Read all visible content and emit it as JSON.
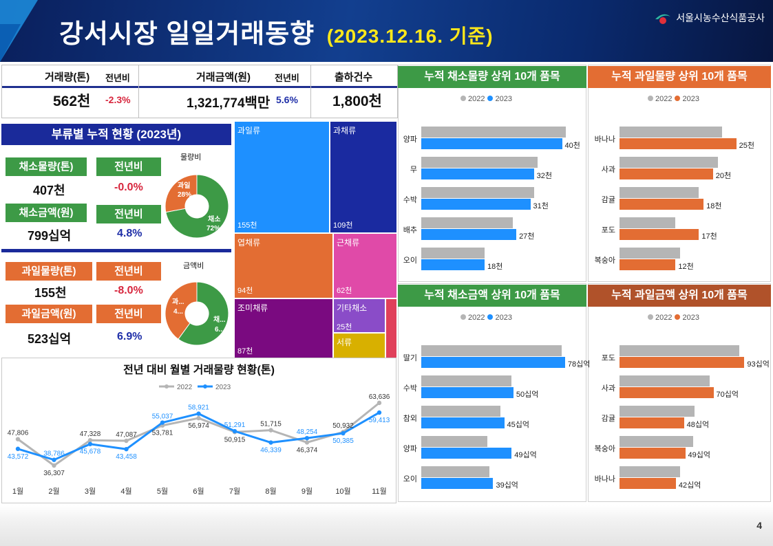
{
  "header": {
    "title": "강서시장 일일거래동향",
    "date": "(2023.12.16. 기준)",
    "org": "서울시농수산식품공사",
    "page": "4"
  },
  "kpi": {
    "volume_label": "거래량(톤)",
    "volume_value": "562천",
    "volume_yoy_label": "전년비",
    "volume_yoy": "-2.3%",
    "amount_label": "거래금액(원)",
    "amount_value": "1,321,774",
    "amount_unit": "백만",
    "amount_yoy_label": "전년비",
    "amount_yoy": "5.6%",
    "shipments_label": "출하건수",
    "shipments_value": "1,800천"
  },
  "category": {
    "title": "부류별 누적 현황 (2023년)",
    "veg_vol_label": "채소물량(톤)",
    "veg_vol": "407천",
    "veg_vol_yoy_label": "전년비",
    "veg_vol_yoy": "-0.0%",
    "veg_amt_label": "채소금액(원)",
    "veg_amt": "799십억",
    "veg_amt_yoy_label": "전년비",
    "veg_amt_yoy": "4.8%",
    "fruit_vol_label": "과일물량(톤)",
    "fruit_vol": "155천",
    "fruit_vol_yoy_label": "전년비",
    "fruit_vol_yoy": "-8.0%",
    "fruit_amt_label": "과일금액(원)",
    "fruit_amt": "523십억",
    "fruit_amt_yoy_label": "전년비",
    "fruit_amt_yoy": "6.9%",
    "donut1_title": "물량비",
    "donut1_fruit_label": "과일",
    "donut1_fruit_pct": "28%",
    "donut1_veg_label": "채소",
    "donut1_veg_pct": "72%",
    "donut2_title": "금액비",
    "donut2_fruit_label": "과...",
    "donut2_fruit_pct": "4...",
    "donut2_veg_label": "채...",
    "donut2_veg_pct": "6..."
  },
  "colors": {
    "navy": "#1a2a9a",
    "green": "#3d9a46",
    "orange": "#e36d33",
    "blue": "#1e90ff",
    "gray": "#b5b5b5"
  },
  "chart_data": [
    {
      "type": "pie",
      "title": "물량비",
      "categories": [
        "채소",
        "과일"
      ],
      "values": [
        72,
        28
      ]
    },
    {
      "type": "pie",
      "title": "금액비",
      "categories": [
        "채소",
        "과일"
      ],
      "values": [
        60,
        40
      ]
    },
    {
      "type": "treemap",
      "title": "",
      "categories": [
        "과일류",
        "과채류",
        "엽채류",
        "근채류",
        "조미채류",
        "기타채소",
        "서류"
      ],
      "values": [
        155,
        109,
        94,
        62,
        87,
        25,
        16
      ],
      "value_labels": [
        "155천",
        "109천",
        "94천",
        "62천",
        "87천",
        "25천",
        ""
      ]
    },
    {
      "type": "bar",
      "title": "누적 채소물량 상위 10개 품목",
      "categories": [
        "양파",
        "무",
        "수박",
        "배추",
        "오이"
      ],
      "series": [
        {
          "name": "2022",
          "values": [
            41,
            33,
            32,
            26,
            18
          ]
        },
        {
          "name": "2023",
          "values": [
            40,
            32,
            31,
            27,
            18
          ]
        }
      ],
      "value_labels": [
        "40천",
        "32천",
        "31천",
        "27천",
        "18천"
      ]
    },
    {
      "type": "bar",
      "title": "누적 과일물량 상위 10개 품목",
      "categories": [
        "바나나",
        "사과",
        "감귤",
        "포도",
        "복숭아"
      ],
      "series": [
        {
          "name": "2022",
          "values": [
            22,
            21,
            17,
            12,
            13
          ]
        },
        {
          "name": "2023",
          "values": [
            25,
            20,
            18,
            17,
            12
          ]
        }
      ],
      "value_labels": [
        "25천",
        "20천",
        "18천",
        "17천",
        "12천"
      ]
    },
    {
      "type": "bar",
      "title": "누적 채소금액 상위 10개 품목",
      "categories": [
        "딸기",
        "수박",
        "참외",
        "양파",
        "오이"
      ],
      "series": [
        {
          "name": "2022",
          "values": [
            76,
            49,
            43,
            36,
            37
          ]
        },
        {
          "name": "2023",
          "values": [
            78,
            50,
            45,
            49,
            39
          ]
        }
      ],
      "value_labels": [
        "78십억",
        "50십억",
        "45십억",
        "49십억",
        "39십억"
      ]
    },
    {
      "type": "bar",
      "title": "누적 과일금액 상위 10개 품목",
      "categories": [
        "포도",
        "사과",
        "감귤",
        "복숭아",
        "바나나"
      ],
      "series": [
        {
          "name": "2022",
          "values": [
            89,
            67,
            56,
            55,
            45
          ]
        },
        {
          "name": "2023",
          "values": [
            93,
            70,
            48,
            49,
            42
          ]
        }
      ],
      "value_labels": [
        "93십억",
        "70십억",
        "48십억",
        "49십억",
        "42십억"
      ]
    },
    {
      "type": "line",
      "title": "전년 대비 월별 거래물량 현황(톤)",
      "categories": [
        "1월",
        "2월",
        "3월",
        "4월",
        "5월",
        "6월",
        "7월",
        "8월",
        "9월",
        "10월",
        "11월"
      ],
      "series": [
        {
          "name": "2022",
          "values": [
            47806,
            36307,
            47328,
            47087,
            53781,
            56974,
            50915,
            51715,
            46374,
            50932,
            63636
          ]
        },
        {
          "name": "2023",
          "values": [
            43572,
            38786,
            45678,
            43458,
            55037,
            58921,
            51291,
            46339,
            48254,
            50385,
            59413
          ]
        }
      ],
      "labels_2022": [
        "47,806",
        "36,307",
        "47,328",
        "47,087",
        "53,781",
        "56,974",
        "50,915",
        "51,715",
        "46,374",
        "50,932",
        "63,636"
      ],
      "labels_2023": [
        "43,572",
        "38,786",
        "45,678",
        "43,458",
        "55,037",
        "58,921",
        "51,291",
        "46,339",
        "48,254",
        "50,385",
        "59,413"
      ]
    }
  ]
}
